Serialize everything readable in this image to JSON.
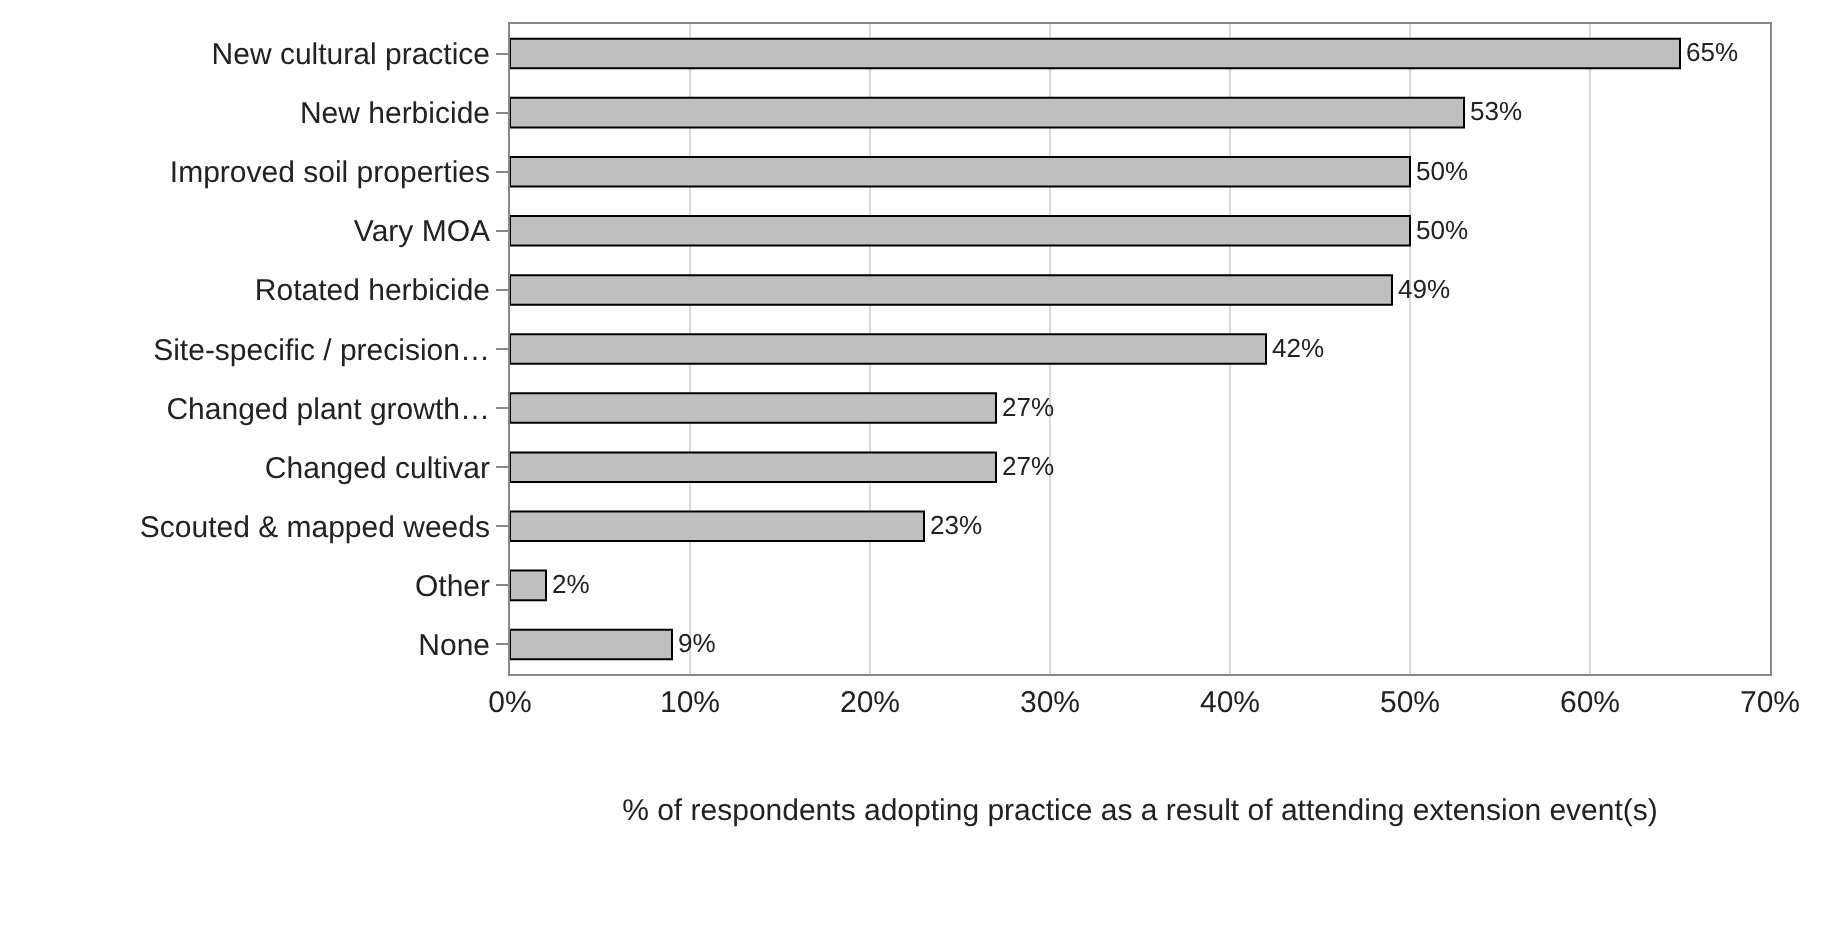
{
  "chart_data": {
    "type": "bar",
    "orientation": "horizontal",
    "xlabel": "% of respondents adopting practice as a result of attending extension event(s)",
    "categories": [
      "New cultural practice",
      "New herbicide",
      "Improved soil properties",
      "Vary MOA",
      "Rotated herbicide",
      "Site-specific / precision…",
      "Changed plant growth…",
      "Changed cultivar",
      "Scouted & mapped weeds",
      "Other",
      "None"
    ],
    "values": [
      65,
      53,
      50,
      50,
      49,
      42,
      27,
      27,
      23,
      2,
      9
    ],
    "value_labels": [
      "65%",
      "53%",
      "50%",
      "50%",
      "49%",
      "42%",
      "27%",
      "27%",
      "23%",
      "2%",
      "9%"
    ],
    "color": "#bfbfbf",
    "xlim": [
      0,
      70
    ],
    "xticks": [
      {
        "value": 0,
        "label": "0%"
      },
      {
        "value": 10,
        "label": "10%"
      },
      {
        "value": 20,
        "label": "20%"
      },
      {
        "value": 30,
        "label": "30%"
      },
      {
        "value": 40,
        "label": "40%"
      },
      {
        "value": 50,
        "label": "50%"
      },
      {
        "value": 60,
        "label": "60%"
      },
      {
        "value": 70,
        "label": "70%"
      }
    ],
    "grid": "x"
  }
}
